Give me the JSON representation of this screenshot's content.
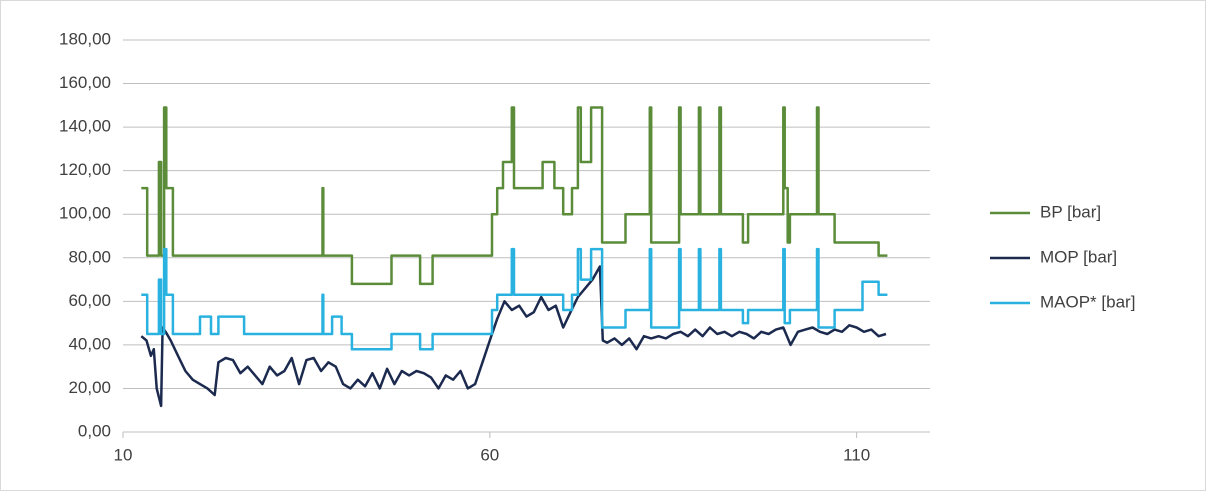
{
  "chart_data": {
    "type": "line",
    "xlim": [
      10,
      120
    ],
    "xticks": [
      10,
      60,
      110
    ],
    "ylim": [
      0,
      180
    ],
    "yticks": [
      {
        "value": 0,
        "label": "0,00"
      },
      {
        "value": 20,
        "label": "20,00"
      },
      {
        "value": 40,
        "label": "40,00"
      },
      {
        "value": 60,
        "label": "60,00"
      },
      {
        "value": 80,
        "label": "80,00"
      },
      {
        "value": 100,
        "label": "100,00"
      },
      {
        "value": 120,
        "label": "120,00"
      },
      {
        "value": 140,
        "label": "140,00"
      },
      {
        "value": 160,
        "label": "160,00"
      },
      {
        "value": 180,
        "label": "180,00"
      }
    ],
    "grid": true,
    "legend": "right",
    "series": [
      {
        "name": "BP [bar]",
        "color": "#5b8c3a",
        "x": [
          12.5,
          13.3,
          13.3,
          14.9,
          14.9,
          15.2,
          15.2,
          15.6,
          15.6,
          15.9,
          15.9,
          16.8,
          16.8,
          37.2,
          37.2,
          37.3,
          37.3,
          41.2,
          41.2,
          46.6,
          46.6,
          50.5,
          50.5,
          52.2,
          52.2,
          60.3,
          60.3,
          61,
          61,
          61.8,
          61.8,
          63,
          63,
          63.3,
          63.3,
          67.2,
          67.2,
          68.8,
          68.8,
          70,
          70,
          71.2,
          71.2,
          72,
          72,
          72.4,
          72.4,
          73.8,
          73.8,
          75.3,
          75.3,
          78.5,
          78.5,
          81.8,
          81.8,
          82,
          82,
          85.8,
          85.8,
          86,
          86,
          88.5,
          88.5,
          88.7,
          88.7,
          91.3,
          91.3,
          91.5,
          91.5,
          94.5,
          94.5,
          95.2,
          95.2,
          100,
          100,
          100.2,
          100.2,
          100.6,
          100.6,
          100.9,
          100.9,
          104.6,
          104.6,
          104.8,
          104.8,
          107,
          107,
          113,
          113,
          114.2
        ],
        "values": [
          112,
          112,
          81,
          81,
          124,
          124,
          81,
          81,
          149,
          149,
          112,
          112,
          81,
          81,
          112,
          112,
          81,
          81,
          68,
          68,
          81,
          81,
          68,
          68,
          81,
          81,
          100,
          100,
          112,
          112,
          124,
          124,
          149,
          149,
          112,
          112,
          124,
          124,
          112,
          112,
          100,
          100,
          112,
          112,
          149,
          149,
          124,
          124,
          149,
          149,
          87,
          87,
          100,
          100,
          149,
          149,
          87,
          87,
          149,
          149,
          100,
          100,
          149,
          149,
          100,
          100,
          149,
          149,
          100,
          100,
          87,
          87,
          100,
          100,
          149,
          149,
          112,
          112,
          87,
          87,
          100,
          100,
          149,
          149,
          100,
          100,
          87,
          87,
          81,
          81
        ]
      },
      {
        "name": "MOP [bar]",
        "color": "#1b2a4e",
        "x": [
          12.5,
          13.2,
          13.8,
          14.2,
          14.6,
          15.2,
          15.4,
          15.8,
          16.5,
          17.5,
          18.5,
          19.5,
          20.5,
          21.5,
          22.5,
          23,
          24,
          25,
          26,
          27,
          28,
          29,
          30,
          31,
          32,
          33,
          34,
          35,
          36,
          37,
          38,
          39,
          40,
          41,
          42,
          43,
          44,
          45,
          46,
          47,
          48,
          49,
          50,
          51,
          52,
          53,
          54,
          55,
          56,
          57,
          58,
          59,
          60,
          61,
          62,
          63,
          64,
          65,
          66,
          67,
          68,
          69,
          70,
          71,
          72,
          73,
          74,
          75,
          75.4,
          76,
          77,
          78,
          79,
          80,
          81,
          82,
          83,
          84,
          85,
          86,
          87,
          88,
          89,
          90,
          91,
          92,
          93,
          94,
          95,
          96,
          97,
          98,
          99,
          100,
          101,
          102,
          103,
          104,
          105,
          106,
          107,
          108,
          109,
          110,
          111,
          112,
          113,
          114
        ],
        "values": [
          44,
          42,
          35,
          38,
          20,
          12,
          48,
          46,
          42,
          35,
          28,
          24,
          22,
          20,
          17,
          32,
          34,
          33,
          27,
          30,
          26,
          22,
          30,
          26,
          28,
          34,
          22,
          33,
          34,
          28,
          32,
          30,
          22,
          20,
          24,
          21,
          27,
          20,
          29,
          22,
          28,
          26,
          28,
          27,
          25,
          20,
          26,
          24,
          28,
          20,
          22,
          32,
          42,
          52,
          60,
          56,
          58,
          53,
          55,
          62,
          56,
          58,
          48,
          55,
          62,
          66,
          70,
          76,
          42,
          41,
          43,
          40,
          43,
          38,
          44,
          43,
          44,
          43,
          45,
          46,
          44,
          47,
          44,
          48,
          45,
          46,
          44,
          46,
          45,
          43,
          46,
          45,
          47,
          48,
          40,
          46,
          47,
          48,
          46,
          45,
          47,
          46,
          49,
          48,
          46,
          47,
          44,
          45
        ]
      },
      {
        "name": "MAOP* [bar]",
        "color": "#29b2e0",
        "x": [
          12.5,
          13.3,
          13.3,
          14.9,
          14.9,
          15.2,
          15.2,
          15.6,
          15.6,
          15.9,
          15.9,
          16.8,
          16.8,
          20.5,
          20.5,
          22,
          22,
          23,
          23,
          26.5,
          26.5,
          37.2,
          37.2,
          37.3,
          37.3,
          38.5,
          38.5,
          39.8,
          39.8,
          41.2,
          41.2,
          46.6,
          46.6,
          50.5,
          50.5,
          52.2,
          52.2,
          60.3,
          60.3,
          61,
          61,
          63,
          63,
          63.3,
          63.3,
          70,
          70,
          71.2,
          71.2,
          72,
          72,
          72.4,
          72.4,
          73.8,
          73.8,
          75.3,
          75.3,
          78.5,
          78.5,
          81.8,
          81.8,
          82,
          82,
          85.8,
          85.8,
          86,
          86,
          88.5,
          88.5,
          88.7,
          88.7,
          91.3,
          91.3,
          91.5,
          91.5,
          94.5,
          94.5,
          95.2,
          95.2,
          100,
          100,
          100.2,
          100.2,
          100.9,
          100.9,
          104.6,
          104.6,
          104.8,
          104.8,
          107,
          107,
          110.8,
          110.8,
          113,
          113,
          114.2
        ],
        "values": [
          63,
          63,
          45,
          45,
          70,
          70,
          45,
          45,
          84,
          84,
          63,
          63,
          45,
          45,
          53,
          53,
          45,
          45,
          53,
          53,
          45,
          45,
          63,
          63,
          45,
          45,
          53,
          53,
          45,
          45,
          38,
          38,
          45,
          45,
          38,
          38,
          45,
          45,
          56,
          56,
          63,
          63,
          84,
          84,
          63,
          63,
          56,
          56,
          63,
          63,
          84,
          84,
          70,
          70,
          84,
          84,
          48,
          48,
          56,
          56,
          84,
          84,
          48,
          48,
          84,
          84,
          56,
          56,
          84,
          84,
          56,
          56,
          84,
          84,
          56,
          56,
          50,
          50,
          56,
          56,
          84,
          84,
          50,
          50,
          56,
          56,
          84,
          84,
          48,
          48,
          56,
          56,
          69,
          69,
          63,
          63
        ]
      }
    ]
  }
}
